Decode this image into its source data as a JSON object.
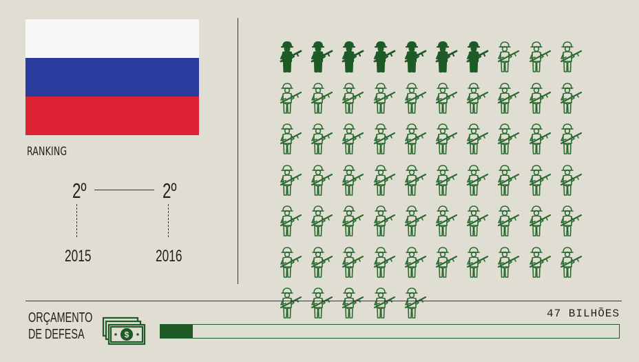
{
  "flag": {
    "country": "Russia",
    "stripes": [
      "#f7f7f7",
      "#2a3d9f",
      "#dd2233"
    ]
  },
  "ranking": {
    "label": "RANKING",
    "entries": [
      {
        "position": "2º",
        "year": "2015"
      },
      {
        "position": "2º",
        "year": "2016"
      }
    ]
  },
  "soldiers": {
    "total": 65,
    "highlighted": 7,
    "per_row": 10,
    "highlight_color": "#1e5a26",
    "outline_color": "#2a6a30",
    "icon": "soldier-with-rifle-icon"
  },
  "budget": {
    "label_line1": "ORÇAMENTO",
    "label_line2": "DE DEFESA",
    "icon": "money-stack-icon",
    "value_text": "47 BILHÕES",
    "bar_fraction": 0.07,
    "bar_color": "#1e5a26"
  }
}
